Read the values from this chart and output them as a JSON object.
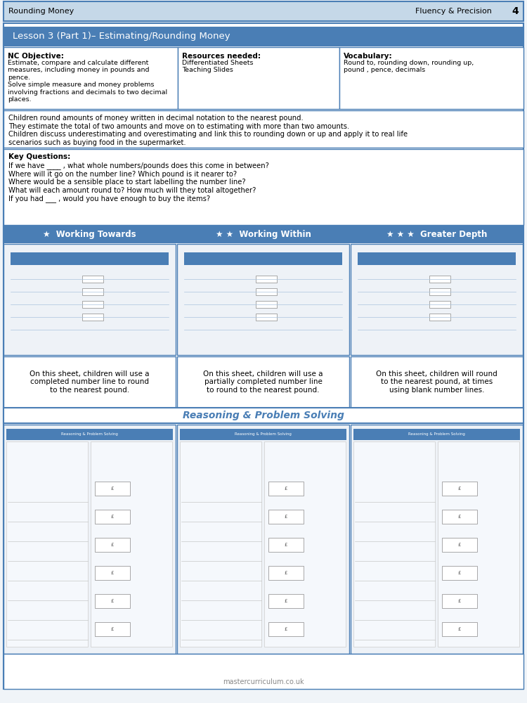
{
  "page_bg": "#f0f4f8",
  "header_bg": "#c5d8e8",
  "header_border": "#4a7eb5",
  "blue_banner_bg": "#4a7eb5",
  "blue_banner_text": "#ffffff",
  "lesson_banner_bg": "#4a7eb5",
  "section_bg": "#ffffff",
  "border_color": "#4a7eb5",
  "text_dark": "#000000",
  "reasoning_banner_bg": "#ffffff",
  "reasoning_banner_border": "#4a7eb5",
  "header_left": "Rounding Money",
  "header_right": "Fluency & Precision",
  "header_page": "4",
  "lesson_title": "Lesson 3 (Part 1)– Estimating/Rounding Money",
  "nc_objective_title": "NC Objective:",
  "nc_objective_body": "Estimate, compare and calculate different\nmeasures, including money in pounds and\npence.\nSolve simple measure and money problems\ninvolving fractions and decimals to two decimal\nplaces.",
  "resources_title": "Resources needed:",
  "resources_body": "Differentiated Sheets\nTeaching Slides",
  "vocab_title": "Vocabulary:",
  "vocab_body": "Round to, rounding down, rounding up,\npound , pence, decimals",
  "description": "Children round amounts of money written in decimal notation to the nearest pound.\nThey estimate the total of two amounts and move on to estimating with more than two amounts.\nChildren discuss underestimating and overestimating and link this to rounding down or up and apply it to real life\nscenarios such as buying food in the supermarket.",
  "key_questions_title": "Key Questions:",
  "key_questions": "If we have ____ , what whole numbers/pounds does this come in between?\nWhere will it go on the number line? Which pound is it nearer to?\nWhere would be a sensible place to start labelling the number line?\nWhat will each amount round to? How much will they total altogether?\nIf you had ___ , would you have enough to buy the items?",
  "col1_title": "★  Working Towards",
  "col2_title": "★ ★  Working Within",
  "col3_title": "★ ★ ★  Greater Depth",
  "col1_desc": "On this sheet, children will use a\ncompleted number line to round\nto the nearest pound.",
  "col2_desc": "On this sheet, children will use a\npartially completed number line\nto round to the nearest pound.",
  "col3_desc": "On this sheet, children will round\nto the nearest pound, at times\nusing blank number lines.",
  "reasoning_title": "Reasoning & Problem Solving",
  "footer": "mastercurriculum.co.uk"
}
